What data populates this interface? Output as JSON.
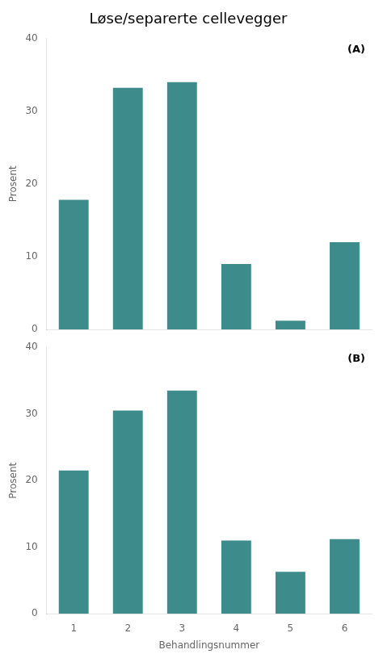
{
  "chart_data": [
    {
      "type": "bar",
      "title": "Løse/separerte cellevegger",
      "categories": [
        1,
        2,
        3,
        4,
        5,
        6
      ],
      "values": [
        17.8,
        33.2,
        34.0,
        9.0,
        1.2,
        12.0
      ],
      "color": "#3d8b8b",
      "ylim": [
        0,
        40
      ],
      "yticks": [
        0,
        10,
        20,
        30,
        40
      ],
      "ylabel": "Prosent",
      "annotation": "(A)",
      "grid": false,
      "tick_labels": "y"
    },
    {
      "type": "bar",
      "categories": [
        1,
        2,
        3,
        4,
        5,
        6
      ],
      "values": [
        21.5,
        30.5,
        33.5,
        11.0,
        6.3,
        11.2
      ],
      "color": "#3d8b8b",
      "ylim": [
        0,
        40
      ],
      "yticks": [
        0,
        10,
        20,
        30,
        40
      ],
      "xlabel": "Behandlingsnummer",
      "ylabel": "Prosent",
      "annotation": "(B)",
      "grid": false
    }
  ]
}
